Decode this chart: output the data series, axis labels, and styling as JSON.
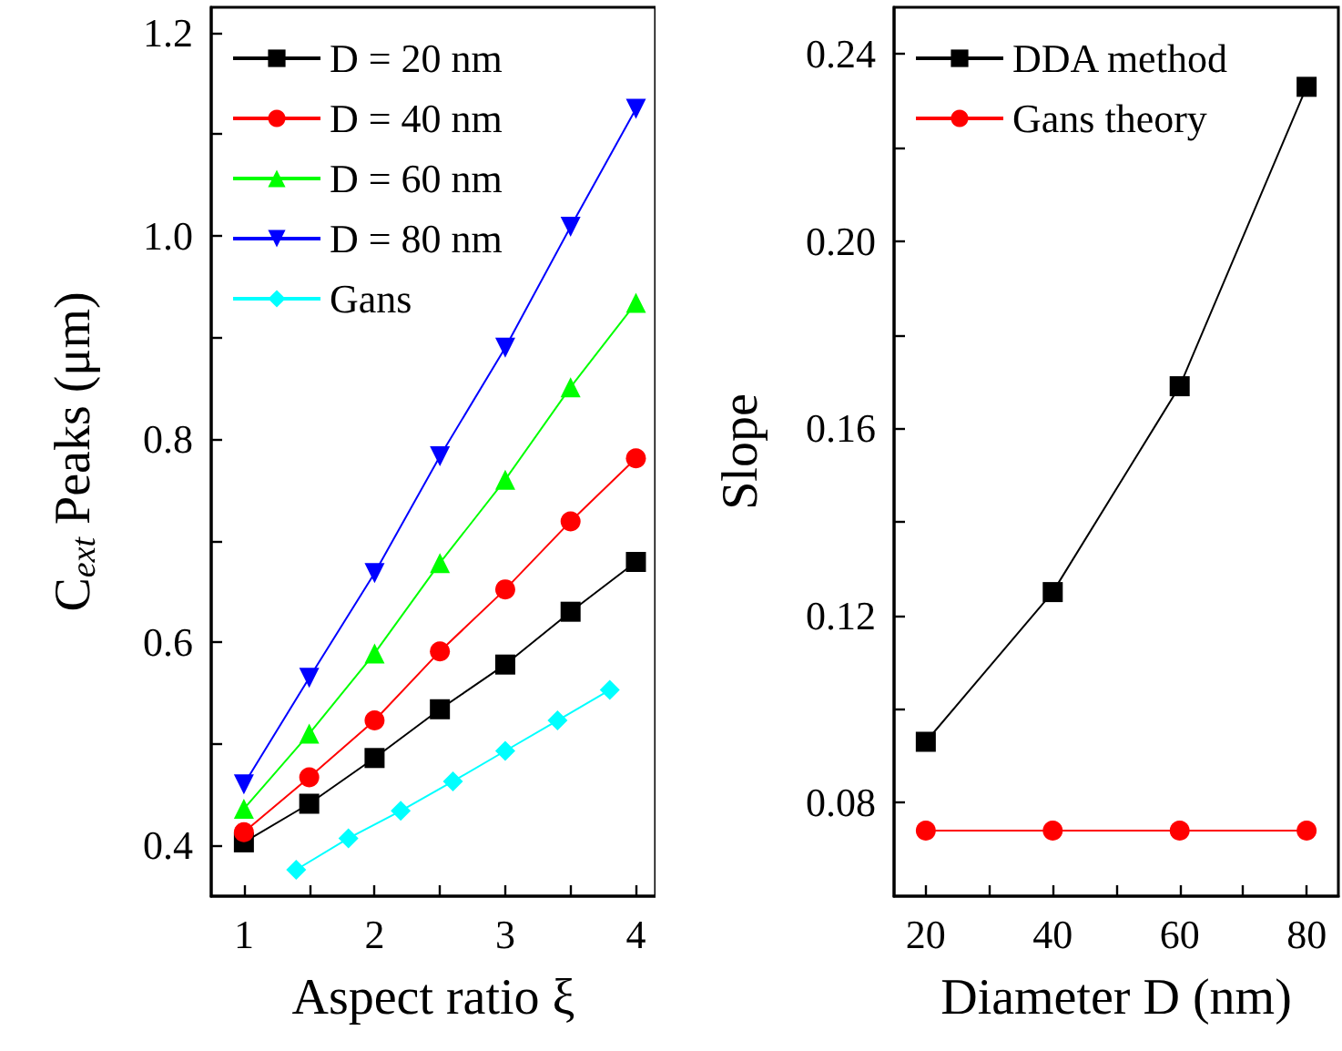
{
  "chart_data": [
    {
      "type": "line",
      "xlabel": "Aspect ratio ξ",
      "ylabel": "C$_{ext}$ Peaks (μm)",
      "xlim": [
        0.75,
        4.15
      ],
      "ylim": [
        0.35,
        1.225
      ],
      "xticks": [
        1,
        {
          "value": 1.5,
          "label": null
        },
        2,
        {
          "value": 2.5,
          "label": null
        },
        3,
        {
          "value": 3.5,
          "label": null
        },
        4
      ],
      "yticks": [
        0.4,
        {
          "value": 0.5,
          "label": null
        },
        0.6,
        {
          "value": 0.7,
          "label": null
        },
        0.8,
        {
          "value": 0.9,
          "label": null
        },
        {
          "value": 1,
          "label": "1.0"
        },
        {
          "value": 1.1,
          "label": null
        },
        1.2
      ],
      "legend": "top left",
      "series": [
        {
          "name": "D = 20 nm",
          "color": "#000000",
          "marker": "square",
          "x": [
            1,
            1.5,
            2,
            2.5,
            3,
            3.5,
            4
          ],
          "values": [
            0.403,
            0.441,
            0.486,
            0.534,
            0.578,
            0.63,
            0.679
          ]
        },
        {
          "name": "D = 40 nm",
          "color": "#ff0000",
          "marker": "circle",
          "x": [
            1,
            1.5,
            2,
            2.5,
            3,
            3.5,
            4
          ],
          "values": [
            0.413,
            0.467,
            0.523,
            0.591,
            0.652,
            0.719,
            0.781
          ]
        },
        {
          "name": "D = 60 nm",
          "color": "#00ff00",
          "marker": "triangle",
          "x": [
            1,
            1.5,
            2,
            2.5,
            3,
            3.5,
            4
          ],
          "values": [
            0.436,
            0.51,
            0.589,
            0.678,
            0.76,
            0.851,
            0.934
          ]
        },
        {
          "name": "D = 80 nm",
          "color": "#0000ff",
          "marker": "triangle-down",
          "x": [
            1,
            1.5,
            2,
            2.5,
            3,
            3.5,
            4
          ],
          "values": [
            0.46,
            0.565,
            0.668,
            0.783,
            0.89,
            1.009,
            1.125
          ]
        },
        {
          "name": "Gans",
          "color": "#00ffff",
          "marker": "diamond",
          "x": [
            1.4,
            1.8,
            2.2,
            2.6,
            3.0,
            3.4,
            3.8
          ],
          "values": [
            0.376,
            0.407,
            0.434,
            0.463,
            0.493,
            0.523,
            0.553
          ]
        }
      ]
    },
    {
      "type": "line",
      "xlabel": "Diameter D (nm)",
      "ylabel": "Slope",
      "xlim": [
        15,
        85
      ],
      "ylim": [
        0.06,
        0.25
      ],
      "xticks": [
        20,
        {
          "value": 30,
          "label": null
        },
        40,
        {
          "value": 50,
          "label": null
        },
        60,
        {
          "value": 70,
          "label": null
        },
        80
      ],
      "yticks": [
        0.08,
        {
          "value": 0.1,
          "label": null
        },
        0.12,
        {
          "value": 0.14,
          "label": null
        },
        0.16,
        {
          "value": 0.18,
          "label": null
        },
        {
          "value": 0.2,
          "label": "0.20"
        },
        {
          "value": 0.22,
          "label": null
        },
        0.24
      ],
      "legend": "top left",
      "series": [
        {
          "name": "DDA method",
          "color": "#000000",
          "marker": "square",
          "x": [
            20,
            40,
            60,
            80
          ],
          "values": [
            0.093,
            0.125,
            0.169,
            0.233
          ]
        },
        {
          "name": "Gans theory",
          "color": "#ff0000",
          "marker": "circle",
          "x": [
            20,
            40,
            60,
            80
          ],
          "values": [
            0.074,
            0.074,
            0.074,
            0.074
          ]
        }
      ]
    }
  ]
}
